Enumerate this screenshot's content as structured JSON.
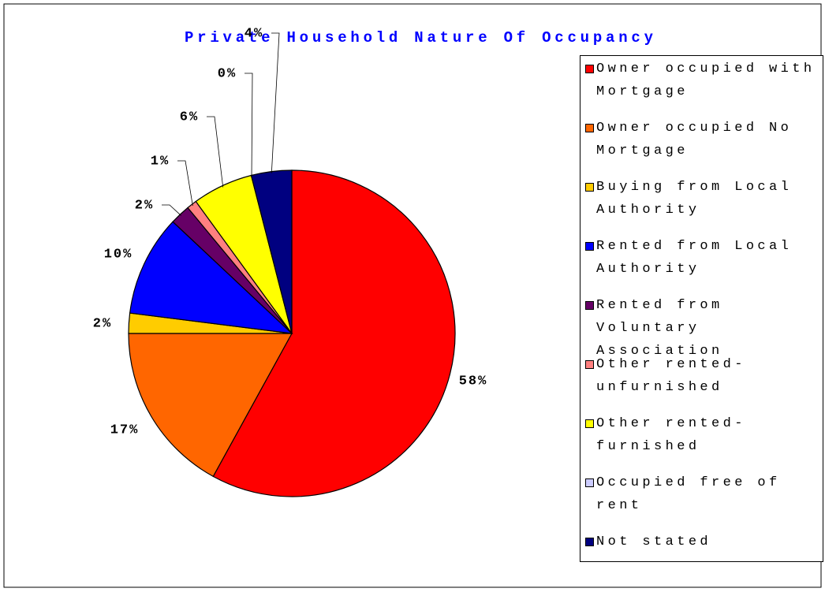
{
  "chart_data": {
    "type": "pie",
    "title": "Private Household Nature Of Occupancy",
    "categories": [
      "Owner occupied with Mortgage",
      "Owner occupied No Mortgage",
      "Buying from Local Authority",
      "Rented from Local Authority",
      "Rented from Voluntary Association",
      "Other rented-unfurnished",
      "Other rented-furnished",
      "Occupied free of rent",
      "Not stated"
    ],
    "values": [
      58,
      17,
      2,
      10,
      2,
      1,
      6,
      0,
      4
    ],
    "value_labels": [
      "58%",
      "17%",
      "2%",
      "10%",
      "2%",
      "1%",
      "6%",
      "0%",
      "4%"
    ],
    "colors": [
      "#ff0000",
      "#ff6600",
      "#ffcc00",
      "#0000ff",
      "#660066",
      "#ff8080",
      "#ffff00",
      "#ccccff",
      "#000080"
    ],
    "legend": "right"
  }
}
